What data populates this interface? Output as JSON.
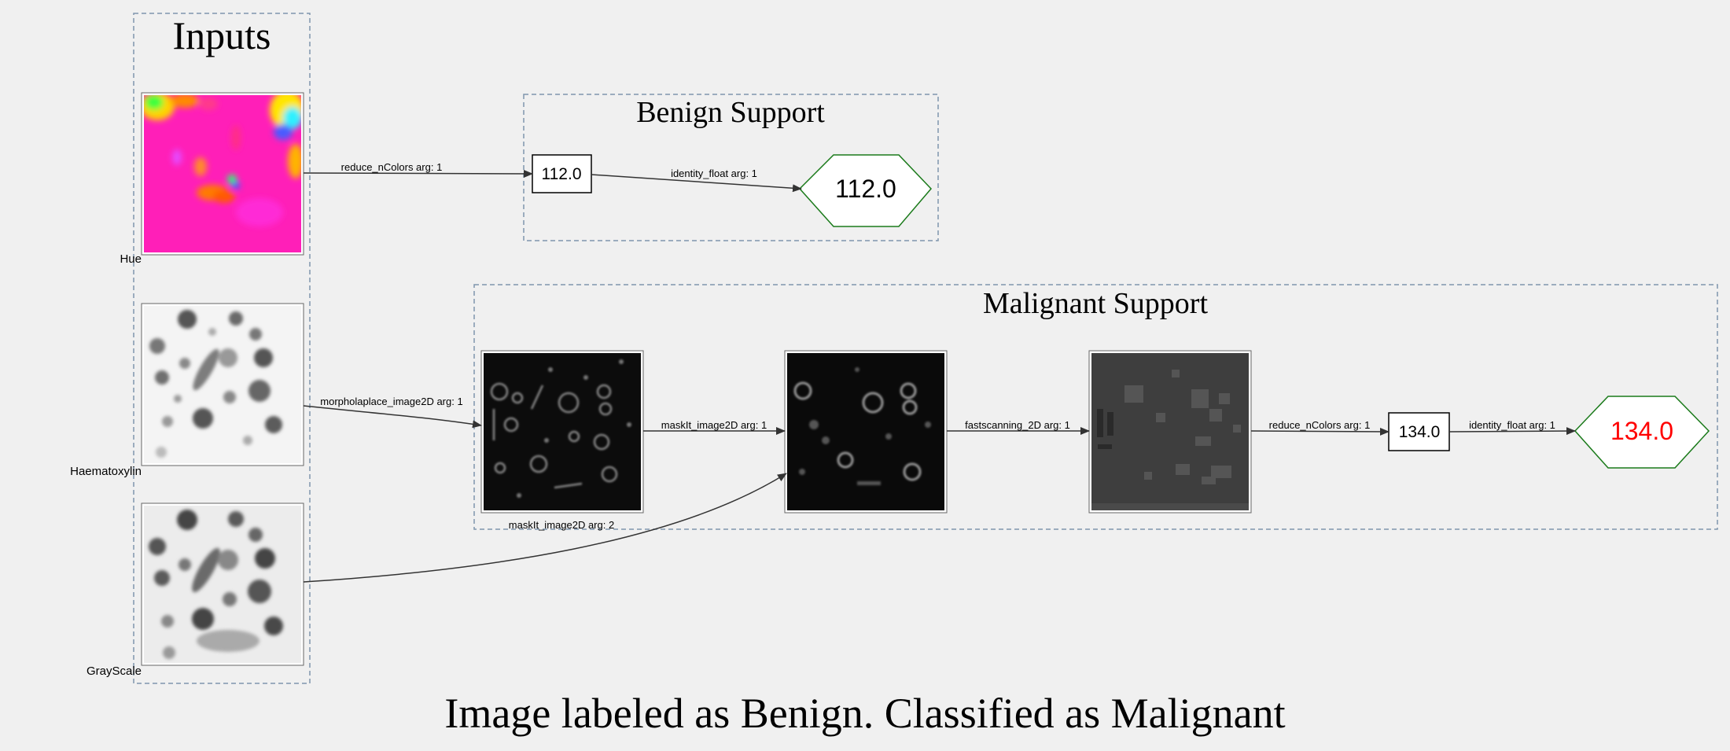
{
  "clusters": {
    "inputs": {
      "title": "Inputs"
    },
    "benign": {
      "title": "Benign Support"
    },
    "malignant": {
      "title": "Malignant Support"
    }
  },
  "inputs": {
    "hue": {
      "label": "Hue"
    },
    "haematoxylin": {
      "label": "Haematoxylin"
    },
    "grayscale": {
      "label": "GrayScale"
    }
  },
  "benign": {
    "value_box": "112.0",
    "output": "112.0",
    "edge_reduce": "reduce_nColors arg: 1",
    "edge_identity": "identity_float arg: 1"
  },
  "malignant": {
    "value_box": "134.0",
    "output": "134.0",
    "edge_morpho": "morpholaplace_image2D arg: 1",
    "edge_mask1": "maskIt_image2D arg: 1",
    "edge_mask2": "maskIt_image2D arg: 2",
    "edge_fastscan": "fastscanning_2D arg: 1",
    "edge_reduce": "reduce_nColors arg: 1",
    "edge_identity": "identity_float arg: 1"
  },
  "caption": "Image labeled as Benign. Classified as Malignant",
  "colors": {
    "background": "#f0f0f0",
    "cluster_border": "#7f95ad",
    "edge": "#333333",
    "hexagon_border": "#1a7a1a",
    "benign_output_text": "#000000",
    "malignant_output_text": "#ff0000"
  },
  "icons": {
    "hue_image": "hue-heatmap-image",
    "haematoxylin_image": "haematoxylin-cells-image",
    "grayscale_image": "grayscale-cells-image",
    "laplace_image": "dark-edge-image",
    "masked_image": "dark-masked-image",
    "fastscan_image": "gray-segmented-image"
  }
}
